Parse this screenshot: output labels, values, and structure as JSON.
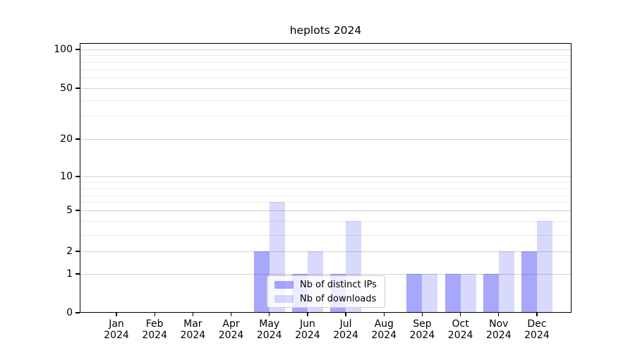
{
  "title": "heplots 2024",
  "chart_data": {
    "type": "bar",
    "title": "heplots 2024",
    "categories": [
      "Jan 2024",
      "Feb 2024",
      "Mar 2024",
      "Apr 2024",
      "May 2024",
      "Jun 2024",
      "Jul 2024",
      "Aug 2024",
      "Sep 2024",
      "Oct 2024",
      "Nov 2024",
      "Dec 2024"
    ],
    "series": [
      {
        "name": "Nb of distinct IPs",
        "color_hex": "#a8a8f8",
        "fill": "rgba(0,0,245,0.345)",
        "values": [
          0,
          0,
          0,
          0,
          2,
          1,
          1,
          0,
          1,
          1,
          1,
          2
        ]
      },
      {
        "name": "Nb of downloads",
        "color_hex": "#d9d9fa",
        "fill": "rgba(0,0,245,0.15)",
        "values": [
          0,
          0,
          0,
          0,
          6,
          2,
          4,
          0,
          1,
          1,
          2,
          4
        ]
      }
    ],
    "xlabel": "",
    "ylabel": "",
    "yscale": "log-like with zero baseline",
    "ylim": [
      0,
      100
    ],
    "yticks_major": [
      0,
      1,
      2,
      5,
      10,
      20,
      50,
      100
    ],
    "yticks_minor": [
      3,
      4,
      6,
      7,
      8,
      9,
      30,
      40,
      60,
      70,
      80,
      90
    ],
    "grid": true,
    "legend_position": "inside lower-center"
  },
  "colors": {
    "background": "#ffffff",
    "axis": "#000000",
    "grid_major": "#d2d2d2",
    "grid_minor": "#ececec",
    "text": "#000000",
    "legend_border": "#cccccc"
  }
}
